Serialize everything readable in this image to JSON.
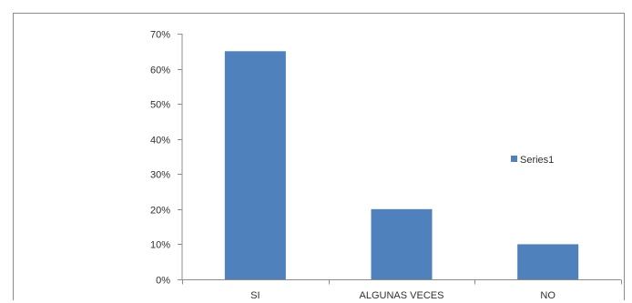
{
  "chart_data": {
    "type": "bar",
    "title": "",
    "xlabel": "",
    "ylabel": "",
    "categories": [
      "SI",
      "ALGUNAS VECES",
      "NO"
    ],
    "series": [
      {
        "name": "Series1",
        "values": [
          65,
          20,
          10
        ],
        "color": "#4f81bd"
      }
    ],
    "ylim": [
      0,
      70
    ],
    "yticks": [
      0,
      10,
      20,
      30,
      40,
      50,
      60,
      70
    ],
    "ytick_labels": [
      "0%",
      "10%",
      "20%",
      "30%",
      "40%",
      "50%",
      "60%",
      "70%"
    ],
    "grid": false,
    "legend": {
      "position": "right",
      "entries": [
        "Series1"
      ]
    },
    "colors": {
      "bar": "#4f81bd",
      "axis": "#8c8c8c",
      "frame": "#8c8c8c"
    }
  }
}
